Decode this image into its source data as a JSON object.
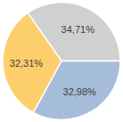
{
  "chart_data": {
    "type": "pie",
    "values": [
      34.71,
      32.98,
      32.31
    ],
    "value_labels": [
      "34,71%",
      "32,98%",
      "32,31%"
    ],
    "colors": [
      "#d0d0d0",
      "#a5bdd8",
      "#fdcf6c"
    ],
    "data_labels": true
  }
}
